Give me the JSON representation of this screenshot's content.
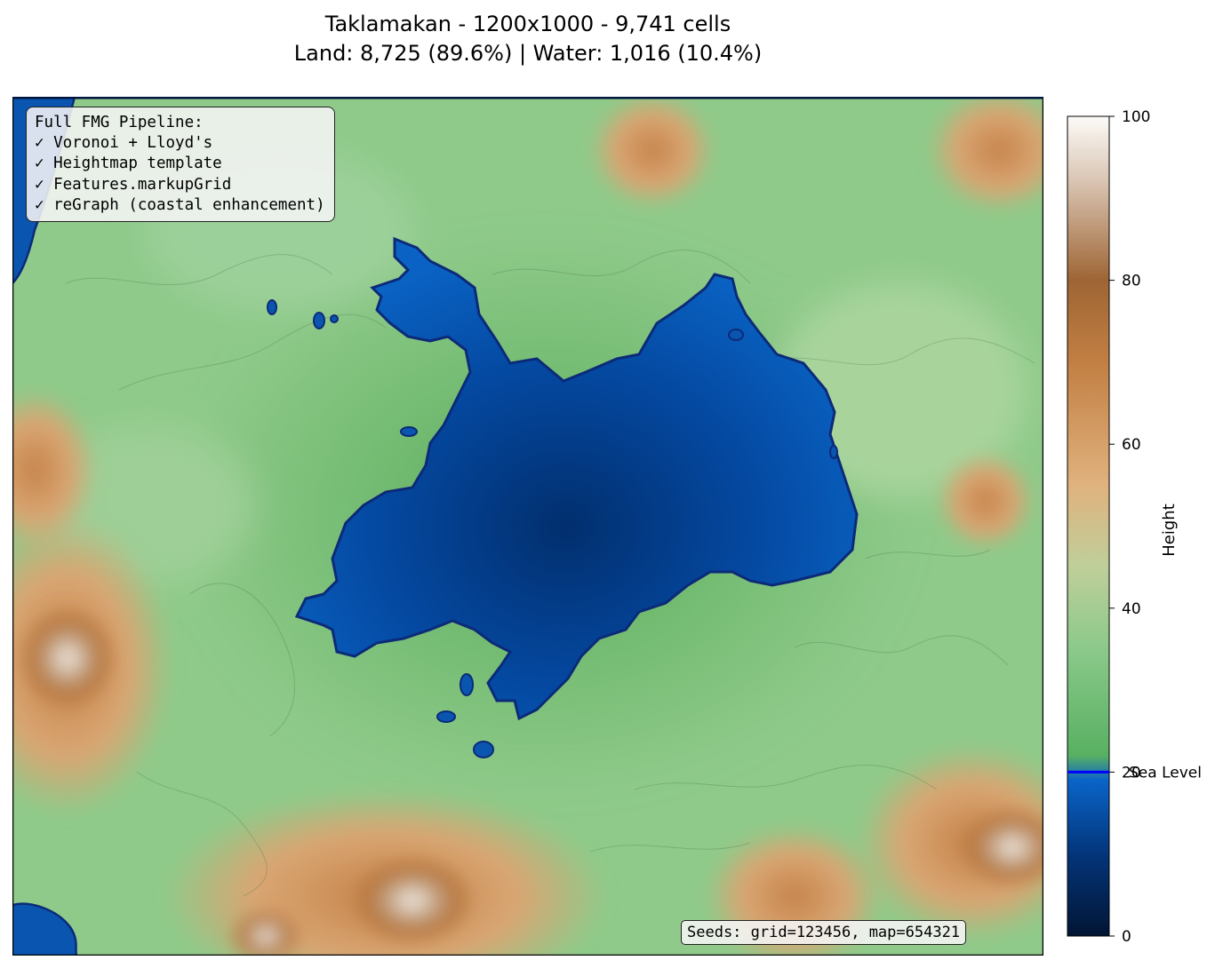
{
  "title": {
    "line1": "Taklamakan - 1200x1000 - 9,741 cells",
    "line2": "Land: 8,725 (89.6%) | Water: 1,016 (10.4%)"
  },
  "pipeline": {
    "heading": "Full FMG Pipeline:",
    "steps": [
      "✓ Voronoi + Lloyd's",
      "✓ Heightmap template",
      "✓ Features.markupGrid",
      "✓ reGraph (coastal enhancement)"
    ]
  },
  "seeds_text": "Seeds: grid=123456, map=654321",
  "colorbar": {
    "label": "Height",
    "ticks": [
      "0",
      "20",
      "40",
      "60",
      "80",
      "100"
    ],
    "tick_values": [
      0,
      20,
      40,
      60,
      80,
      100
    ],
    "range": [
      0,
      100
    ],
    "sea_level_label": "Sea Level",
    "sea_level_value": 20,
    "sea_level_color": "#0000ff",
    "stops": [
      {
        "v": 0,
        "c": "#021534"
      },
      {
        "v": 10,
        "c": "#03357a"
      },
      {
        "v": 19,
        "c": "#0a64c8"
      },
      {
        "v": 22,
        "c": "#58b062"
      },
      {
        "v": 35,
        "c": "#8bc98a"
      },
      {
        "v": 45,
        "c": "#bfcf9a"
      },
      {
        "v": 55,
        "c": "#e0b27e"
      },
      {
        "v": 70,
        "c": "#c27f43"
      },
      {
        "v": 80,
        "c": "#9e6534"
      },
      {
        "v": 92,
        "c": "#d9c4b2"
      },
      {
        "v": 100,
        "c": "#fcfbf8"
      }
    ]
  },
  "map": {
    "land_color": "#8fca8a",
    "water_color": "#0a55b0",
    "deep_water_color": "#033a80",
    "coast_color": "#0c2a78",
    "highland_color": "#c58a52",
    "peak_color": "#f2ece6",
    "frame_top_color": "#00163f"
  }
}
